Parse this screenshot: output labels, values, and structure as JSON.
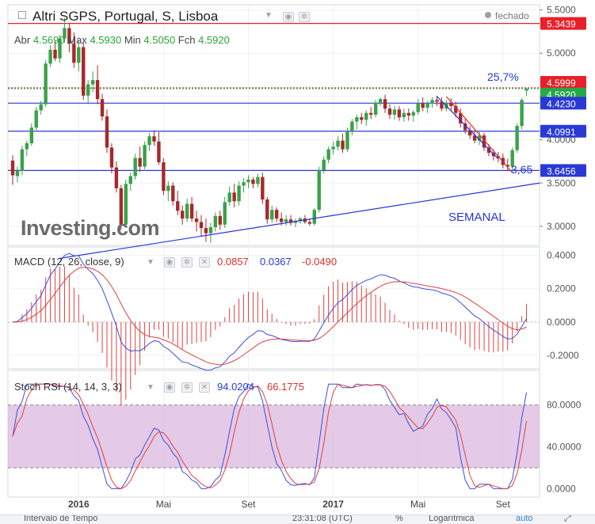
{
  "title": "Altri SGPS, Portugal, S, Lisboa",
  "status": "fechado",
  "ohlc": {
    "o_label": "Abr",
    "o": "4.5690",
    "h_label": "Max",
    "h": "4.5930",
    "l_label": "Min",
    "l": "4.5050",
    "c_label": "Fch",
    "c": "4.5920"
  },
  "logo": "Investing.com",
  "colors": {
    "up": "#3aa14a",
    "down": "#a52a2a",
    "accent_blue": "#2a35d6",
    "macd_line": "#3b4fd8",
    "signal_line": "#e04040",
    "rsi_band": "#d9b3dc",
    "price_tag_red": "#e8202a",
    "price_tag_green": "#27a84a",
    "price_tag_blue": "#2a39d6"
  },
  "chart_data": [
    {
      "type": "candlestick",
      "name": "price",
      "ylim": [
        2.78,
        5.56
      ],
      "yticks": [
        "5.5000",
        "5.0000",
        "4.5000",
        "4.0000",
        "3.5000",
        "3.0000"
      ],
      "xticks": [
        "2016",
        "Mai",
        "Set",
        "2017",
        "Mai",
        "Set"
      ],
      "candles": [
        [
          3.76,
          3.82,
          3.48,
          3.59
        ],
        [
          3.58,
          3.69,
          3.51,
          3.64
        ],
        [
          3.64,
          3.93,
          3.59,
          3.89
        ],
        [
          3.89,
          3.99,
          3.81,
          3.96
        ],
        [
          3.96,
          4.19,
          3.93,
          4.14
        ],
        [
          4.14,
          4.38,
          4.11,
          4.34
        ],
        [
          4.34,
          4.45,
          4.29,
          4.41
        ],
        [
          4.41,
          4.92,
          4.38,
          4.88
        ],
        [
          4.88,
          5.09,
          4.84,
          5.04
        ],
        [
          5.04,
          5.14,
          4.91,
          4.94
        ],
        [
          4.94,
          5.21,
          4.89,
          5.17
        ],
        [
          5.17,
          5.41,
          5.12,
          5.29
        ],
        [
          5.29,
          5.34,
          5.01,
          5.11
        ],
        [
          5.11,
          5.24,
          4.83,
          4.89
        ],
        [
          4.89,
          5.15,
          4.79,
          5.07
        ],
        [
          5.07,
          5.12,
          4.46,
          4.51
        ],
        [
          4.51,
          4.69,
          4.41,
          4.64
        ],
        [
          4.64,
          4.79,
          4.55,
          4.69
        ],
        [
          4.69,
          4.86,
          4.41,
          4.47
        ],
        [
          4.47,
          4.53,
          4.22,
          4.27
        ],
        [
          4.27,
          4.35,
          3.85,
          3.91
        ],
        [
          3.91,
          3.96,
          3.61,
          3.68
        ],
        [
          3.68,
          3.75,
          3.39,
          3.44
        ],
        [
          3.44,
          3.48,
          2.96,
          3.02
        ],
        [
          3.02,
          3.54,
          2.99,
          3.49
        ],
        [
          3.49,
          3.62,
          3.41,
          3.58
        ],
        [
          3.58,
          3.84,
          3.54,
          3.79
        ],
        [
          3.79,
          3.92,
          3.63,
          3.69
        ],
        [
          3.69,
          3.98,
          3.66,
          3.94
        ],
        [
          3.94,
          4.08,
          3.87,
          4.04
        ],
        [
          4.04,
          4.11,
          3.93,
          3.98
        ],
        [
          3.98,
          4.09,
          3.71,
          3.74
        ],
        [
          3.74,
          3.79,
          3.36,
          3.41
        ],
        [
          3.41,
          3.52,
          3.29,
          3.47
        ],
        [
          3.47,
          3.51,
          3.24,
          3.29
        ],
        [
          3.29,
          3.41,
          3.13,
          3.18
        ],
        [
          3.18,
          3.24,
          3.02,
          3.09
        ],
        [
          3.09,
          3.32,
          3.05,
          3.26
        ],
        [
          3.26,
          3.34,
          3.05,
          3.09
        ],
        [
          3.09,
          3.18,
          2.94,
          3.05
        ],
        [
          3.05,
          3.13,
          2.89,
          2.98
        ],
        [
          2.98,
          3.09,
          2.82,
          2.92
        ],
        [
          2.92,
          3.04,
          2.81,
          2.99
        ],
        [
          2.99,
          3.16,
          2.94,
          3.12
        ],
        [
          3.12,
          3.18,
          2.96,
          3.02
        ],
        [
          3.02,
          3.34,
          2.98,
          3.28
        ],
        [
          3.28,
          3.46,
          3.24,
          3.39
        ],
        [
          3.39,
          3.49,
          3.22,
          3.29
        ],
        [
          3.29,
          3.52,
          3.24,
          3.47
        ],
        [
          3.47,
          3.56,
          3.39,
          3.51
        ],
        [
          3.51,
          3.59,
          3.44,
          3.54
        ],
        [
          3.54,
          3.57,
          3.44,
          3.49
        ],
        [
          3.49,
          3.61,
          3.45,
          3.57
        ],
        [
          3.57,
          3.62,
          3.26,
          3.31
        ],
        [
          3.31,
          3.34,
          3.03,
          3.08
        ],
        [
          3.08,
          3.24,
          3.04,
          3.19
        ],
        [
          3.19,
          3.22,
          3.05,
          3.09
        ],
        [
          3.09,
          3.16,
          3.01,
          3.05
        ],
        [
          3.05,
          3.13,
          3.01,
          3.08
        ],
        [
          3.08,
          3.13,
          3.01,
          3.04
        ],
        [
          3.04,
          3.09,
          2.99,
          3.06
        ],
        [
          3.06,
          3.11,
          3.03,
          3.09
        ],
        [
          3.09,
          3.13,
          3.03,
          3.05
        ],
        [
          3.05,
          3.09,
          3.01,
          3.03
        ],
        [
          3.03,
          3.21,
          3.01,
          3.19
        ],
        [
          3.19,
          3.69,
          3.16,
          3.65
        ],
        [
          3.65,
          3.81,
          3.61,
          3.77
        ],
        [
          3.77,
          3.92,
          3.73,
          3.89
        ],
        [
          3.89,
          3.98,
          3.83,
          3.92
        ],
        [
          3.92,
          4.04,
          3.88,
          3.99
        ],
        [
          3.99,
          4.07,
          3.85,
          3.89
        ],
        [
          3.89,
          4.14,
          3.86,
          4.09
        ],
        [
          4.09,
          4.24,
          4.05,
          4.21
        ],
        [
          4.21,
          4.29,
          4.12,
          4.26
        ],
        [
          4.26,
          4.31,
          4.18,
          4.23
        ],
        [
          4.23,
          4.34,
          4.16,
          4.31
        ],
        [
          4.31,
          4.38,
          4.24,
          4.29
        ],
        [
          4.29,
          4.46,
          4.26,
          4.43
        ],
        [
          4.43,
          4.49,
          4.39,
          4.47
        ],
        [
          4.47,
          4.52,
          4.31,
          4.36
        ],
        [
          4.36,
          4.41,
          4.24,
          4.29
        ],
        [
          4.29,
          4.39,
          4.23,
          4.35
        ],
        [
          4.35,
          4.39,
          4.22,
          4.26
        ],
        [
          4.26,
          4.36,
          4.21,
          4.31
        ],
        [
          4.31,
          4.36,
          4.22,
          4.28
        ],
        [
          4.28,
          4.34,
          4.21,
          4.32
        ],
        [
          4.32,
          4.47,
          4.29,
          4.42
        ],
        [
          4.42,
          4.49,
          4.33,
          4.37
        ],
        [
          4.37,
          4.45,
          4.31,
          4.42
        ],
        [
          4.42,
          4.49,
          4.37,
          4.46
        ],
        [
          4.46,
          4.51,
          4.39,
          4.44
        ],
        [
          4.44,
          4.49,
          4.33,
          4.36
        ],
        [
          4.36,
          4.46,
          4.33,
          4.43
        ],
        [
          4.43,
          4.48,
          4.34,
          4.39
        ],
        [
          4.39,
          4.44,
          4.26,
          4.31
        ],
        [
          4.31,
          4.36,
          4.14,
          4.19
        ],
        [
          4.19,
          4.24,
          4.07,
          4.11
        ],
        [
          4.11,
          4.16,
          4.01,
          4.05
        ],
        [
          4.05,
          4.11,
          3.96,
          3.99
        ],
        [
          3.99,
          4.09,
          3.94,
          4.05
        ],
        [
          4.05,
          4.08,
          3.87,
          3.91
        ],
        [
          3.91,
          3.95,
          3.81,
          3.85
        ],
        [
          3.85,
          3.89,
          3.76,
          3.81
        ],
        [
          3.81,
          3.86,
          3.74,
          3.79
        ],
        [
          3.79,
          3.84,
          3.67,
          3.71
        ],
        [
          3.71,
          3.78,
          3.64,
          3.69
        ],
        [
          3.69,
          3.91,
          3.65,
          3.88
        ],
        [
          3.88,
          4.19,
          3.85,
          4.16
        ],
        [
          4.16,
          4.48,
          4.12,
          4.46
        ],
        [
          4.569,
          4.593,
          4.505,
          4.592
        ]
      ],
      "hlines": [
        {
          "value": 5.3439,
          "label": "5.3439",
          "color": "#e8202a"
        },
        {
          "value": 4.5999,
          "label": "4.5999",
          "color": "#e8202a"
        },
        {
          "value": 4.592,
          "label": "4.5920",
          "color": "#27a84a"
        },
        {
          "value": 4.423,
          "label": "4.4230",
          "color": "#2a39d6"
        },
        {
          "value": 4.0991,
          "label": "4.0991",
          "color": "#2a39d6"
        },
        {
          "value": 3.6456,
          "label": "3.6456",
          "color": "#2a39d6"
        }
      ],
      "annotations": [
        "25,7%",
        "3,65",
        "SEMANAL"
      ]
    },
    {
      "type": "line",
      "name": "MACD",
      "label": "MACD (12, 26, close, 9)",
      "values_text": [
        "0.0857",
        "0.0367",
        "-0.0490"
      ],
      "ylim": [
        -0.28,
        0.45
      ],
      "yticks": [
        "0.4000",
        "0.2000",
        "0.0000",
        "-0.2000"
      ]
    },
    {
      "type": "line",
      "name": "Stoch RSI",
      "label": "Stoch RSI (14, 14, 3, 3)",
      "values_text": [
        "94.0204",
        "66.1775"
      ],
      "ylim": [
        -8,
        113
      ],
      "yticks": [
        "80.0000",
        "40.0000",
        "0.0000"
      ],
      "band": [
        20,
        80
      ]
    }
  ],
  "footer": {
    "interval": "Intervalo de Tempo",
    "clock": "23:31:08 (UTC)",
    "pct": "%",
    "log": "Logarítmica",
    "auto": "auto"
  }
}
